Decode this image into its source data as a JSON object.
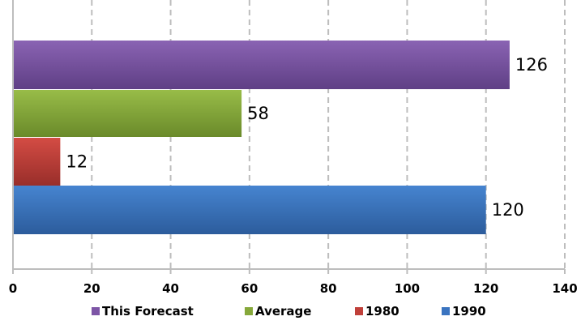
{
  "chart_data": {
    "type": "bar",
    "orientation": "horizontal",
    "series": [
      {
        "name": "This Forecast",
        "value": 126,
        "color": "#7D55A6"
      },
      {
        "name": "Average",
        "value": 58,
        "color": "#86A83A"
      },
      {
        "name": "1980",
        "value": 12,
        "color": "#C0403A"
      },
      {
        "name": "1990",
        "value": 120,
        "color": "#3A74C0"
      }
    ],
    "xlim": [
      0,
      140
    ],
    "xticks": [
      "0",
      "20",
      "40",
      "60",
      "80",
      "100",
      "120",
      "140"
    ],
    "grid": "vertical-dashed",
    "legend_position": "bottom",
    "data_labels": true
  }
}
